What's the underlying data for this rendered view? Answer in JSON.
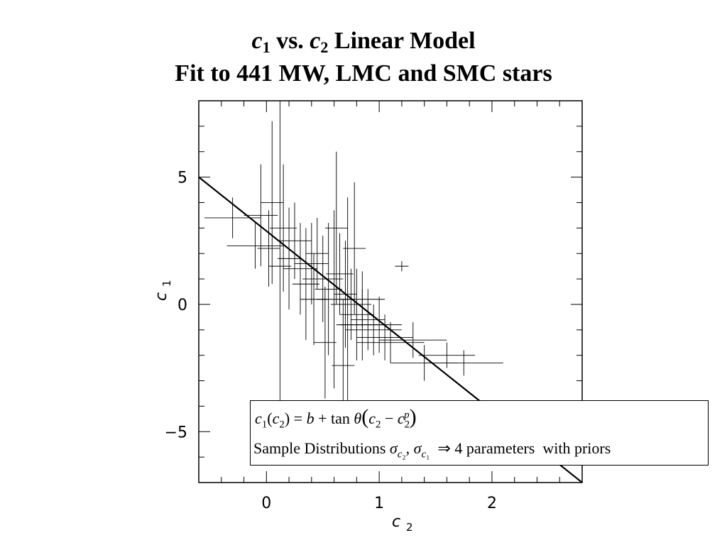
{
  "title": {
    "line1_c1": "c",
    "line1_sub1": "1",
    "line1_mid": " vs. ",
    "line1_c2": "c",
    "line1_sub2": "2",
    "line1_end": " Linear Model",
    "line2": "Fit to 441 MW, LMC and SMC stars"
  },
  "legend": {
    "line1": "c1(c2) = b + tan θ(c2 − c2p)",
    "line2": "Sample Distributions σc2, σc1 ⇒ 4 parameters with priors"
  },
  "chart_data": {
    "type": "scatter",
    "xlabel": "c2",
    "ylabel": "c1",
    "xlim": [
      -0.6,
      2.8
    ],
    "ylim": [
      -7,
      8
    ],
    "xticks": [
      0,
      1,
      2
    ],
    "xtick_labels": [
      "0",
      "1",
      "2"
    ],
    "yticks": [
      -5,
      0,
      5
    ],
    "ytick_labels": [
      "−5",
      "0",
      "5"
    ],
    "fit_line": {
      "x": [
        -0.6,
        2.8
      ],
      "y": [
        5.0,
        -7.0
      ]
    },
    "points": [
      {
        "x": -0.3,
        "y": 3.4,
        "xerr": 0.25,
        "yerr": 0.8
      },
      {
        "x": -0.1,
        "y": 2.3,
        "xerr": 0.25,
        "yerr": 0.9
      },
      {
        "x": -0.05,
        "y": 3.5,
        "xerr": 0.15,
        "yerr": 2.0
      },
      {
        "x": 0.02,
        "y": 2.2,
        "xerr": 0.1,
        "yerr": 1.5
      },
      {
        "x": 0.05,
        "y": 4.0,
        "xerr": 0.1,
        "yerr": 3.2
      },
      {
        "x": 0.12,
        "y": 1.5,
        "xerr": 0.1,
        "yerr": 6.5
      },
      {
        "x": 0.15,
        "y": 3.0,
        "xerr": 0.12,
        "yerr": 2.5
      },
      {
        "x": 0.2,
        "y": 1.8,
        "xerr": 0.1,
        "yerr": 2.0
      },
      {
        "x": 0.25,
        "y": 2.5,
        "xerr": 0.15,
        "yerr": 1.5
      },
      {
        "x": 0.3,
        "y": 1.4,
        "xerr": 0.15,
        "yerr": 1.8
      },
      {
        "x": 0.35,
        "y": 0.8,
        "xerr": 0.12,
        "yerr": 2.2
      },
      {
        "x": 0.4,
        "y": 1.6,
        "xerr": 0.15,
        "yerr": 1.6
      },
      {
        "x": 0.45,
        "y": 2.0,
        "xerr": 0.1,
        "yerr": 1.4
      },
      {
        "x": 0.5,
        "y": 1.0,
        "xerr": 0.18,
        "yerr": 1.7
      },
      {
        "x": 0.55,
        "y": 0.6,
        "xerr": 0.12,
        "yerr": 2.6
      },
      {
        "x": 0.6,
        "y": 0.2,
        "xerr": 0.15,
        "yerr": 3.5
      },
      {
        "x": 0.65,
        "y": 1.2,
        "xerr": 0.12,
        "yerr": 1.6
      },
      {
        "x": 0.7,
        "y": 0.4,
        "xerr": 0.1,
        "yerr": 2.1
      },
      {
        "x": 0.72,
        "y": -0.8,
        "xerr": 0.1,
        "yerr": 5.0
      },
      {
        "x": 0.75,
        "y": 0.0,
        "xerr": 0.18,
        "yerr": 1.4
      },
      {
        "x": 0.8,
        "y": -0.4,
        "xerr": 0.15,
        "yerr": 1.8
      },
      {
        "x": 0.85,
        "y": -0.8,
        "xerr": 0.2,
        "yerr": 1.4
      },
      {
        "x": 0.9,
        "y": -0.6,
        "xerr": 0.15,
        "yerr": 1.2
      },
      {
        "x": 0.95,
        "y": -1.0,
        "xerr": 0.25,
        "yerr": 1.0
      },
      {
        "x": 1.0,
        "y": -0.8,
        "xerr": 0.2,
        "yerr": 1.1
      },
      {
        "x": 1.05,
        "y": -1.3,
        "xerr": 0.25,
        "yerr": 0.9
      },
      {
        "x": 1.1,
        "y": -1.5,
        "xerr": 0.3,
        "yerr": 0.8
      },
      {
        "x": 1.2,
        "y": 1.5,
        "xerr": 0.06,
        "yerr": 0.2
      },
      {
        "x": 1.3,
        "y": -1.4,
        "xerr": 0.3,
        "yerr": 0.7
      },
      {
        "x": 1.4,
        "y": -2.3,
        "xerr": 0.3,
        "yerr": 0.7
      },
      {
        "x": 1.6,
        "y": -2.0,
        "xerr": 0.25,
        "yerr": 0.5
      },
      {
        "x": 1.75,
        "y": -2.3,
        "xerr": 0.35,
        "yerr": 0.5
      },
      {
        "x": 0.85,
        "y": 0.2,
        "xerr": 0.2,
        "yerr": 1.1
      },
      {
        "x": 0.62,
        "y": 3.0,
        "xerr": 0.1,
        "yerr": 3.0
      },
      {
        "x": 0.78,
        "y": 2.2,
        "xerr": 0.1,
        "yerr": 2.6
      },
      {
        "x": 0.68,
        "y": -2.4,
        "xerr": 0.1,
        "yerr": 2.6
      },
      {
        "x": 0.52,
        "y": -1.5,
        "xerr": 0.1,
        "yerr": 2.2
      },
      {
        "x": 0.42,
        "y": 0.2,
        "xerr": 0.12,
        "yerr": 1.8
      }
    ]
  }
}
